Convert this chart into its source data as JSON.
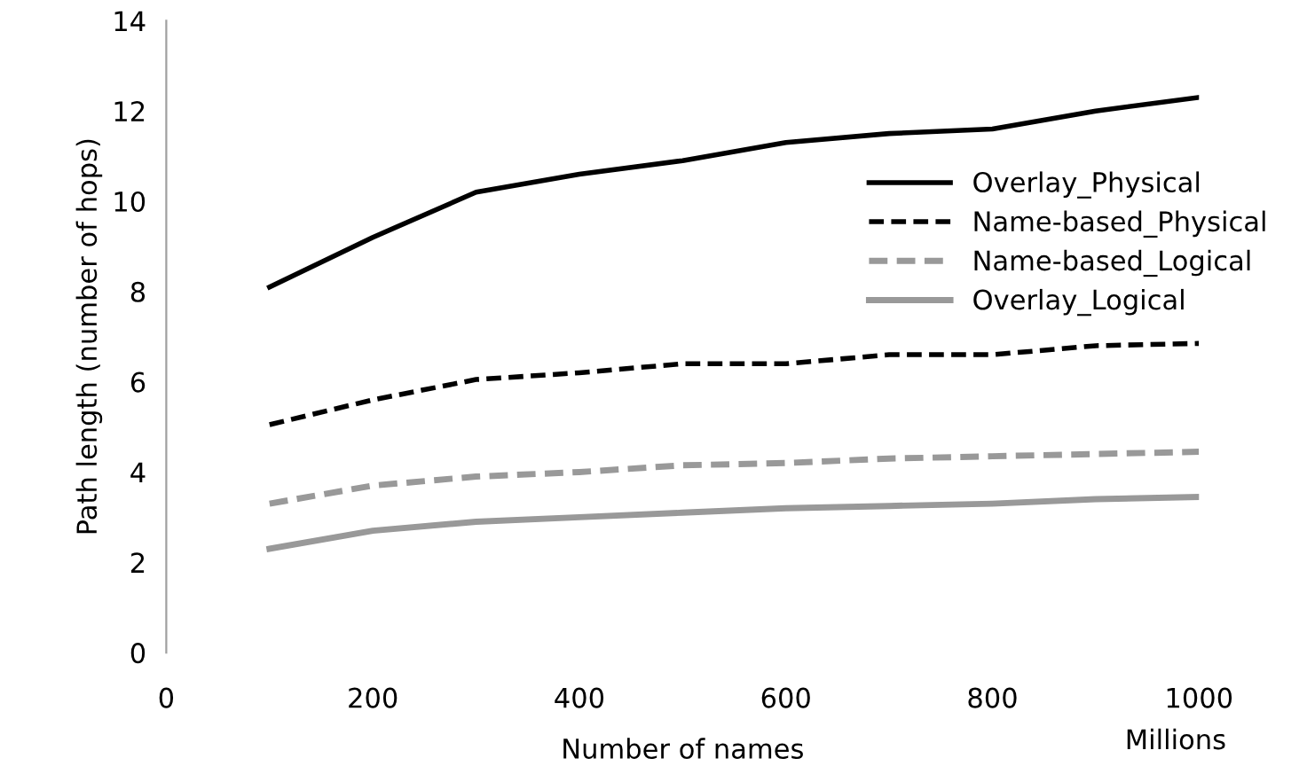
{
  "chart_data": {
    "type": "line",
    "xlabel": "Number of names",
    "ylabel": "Path length (number of hops)",
    "annotations": [
      "Millions"
    ],
    "x": [
      100,
      200,
      300,
      400,
      500,
      600,
      700,
      800,
      900,
      1000
    ],
    "series": [
      {
        "name": "Overlay_Physical",
        "color": "#000000",
        "line_style": "solid",
        "values": [
          8.1,
          9.2,
          10.2,
          10.6,
          10.9,
          11.3,
          11.5,
          11.6,
          12.0,
          12.3
        ]
      },
      {
        "name": "Name-based_Physical",
        "color": "#000000",
        "line_style": "dashed",
        "values": [
          5.05,
          5.6,
          6.05,
          6.2,
          6.4,
          6.4,
          6.6,
          6.6,
          6.8,
          6.85
        ]
      },
      {
        "name": "Name-based_Logical",
        "color": "#999999",
        "line_style": "dashed",
        "values": [
          3.3,
          3.7,
          3.9,
          4.0,
          4.15,
          4.2,
          4.3,
          4.35,
          4.4,
          4.45
        ]
      },
      {
        "name": "Overlay_Logical",
        "color": "#999999",
        "line_style": "solid",
        "values": [
          2.3,
          2.7,
          2.9,
          3.0,
          3.1,
          3.2,
          3.25,
          3.3,
          3.4,
          3.45
        ]
      }
    ],
    "xlim": [
      0,
      1000
    ],
    "xticks": [
      0,
      200,
      400,
      600,
      800,
      1000
    ],
    "ylim": [
      0,
      14
    ],
    "yticks": [
      0,
      2,
      4,
      6,
      8,
      10,
      12,
      14
    ],
    "grid": false,
    "legend": "top right",
    "marker": "none"
  }
}
